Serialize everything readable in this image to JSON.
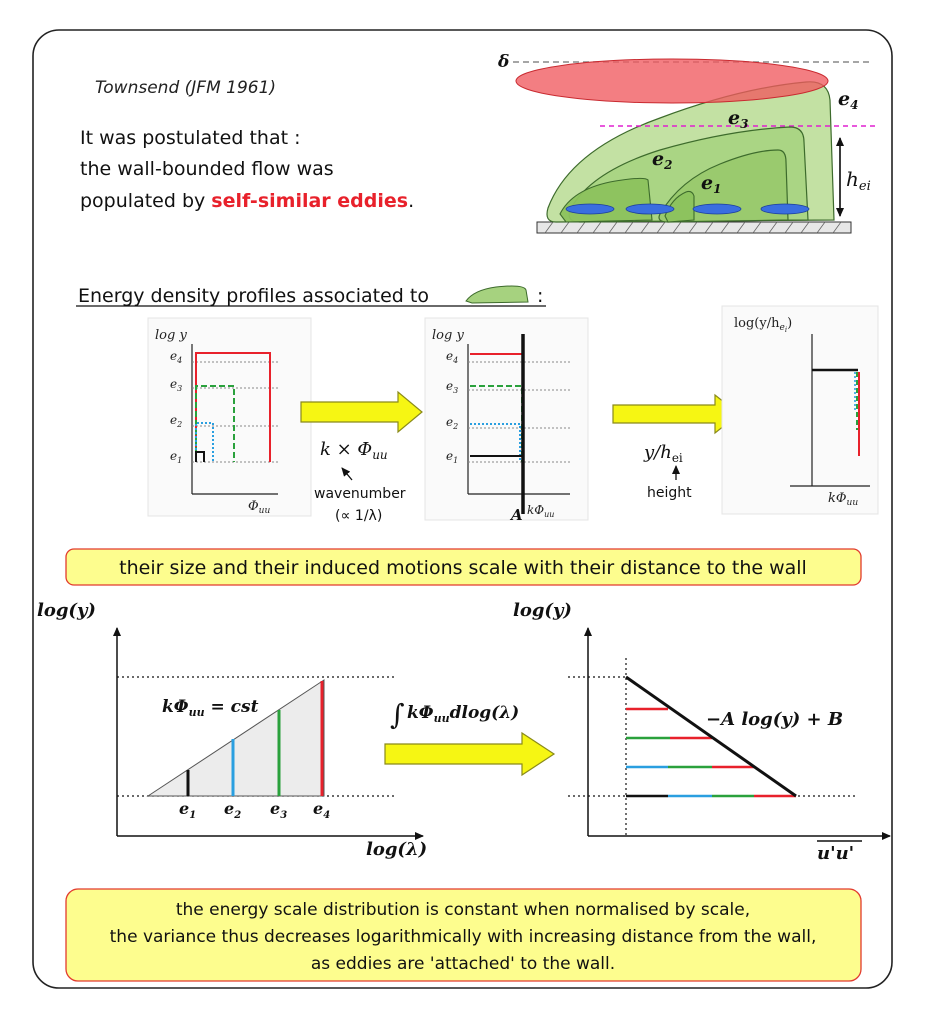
{
  "header": {
    "citation": "Townsend (JFM 1961)",
    "line1": "It was postulated that :",
    "line2": "the wall-bounded flow was",
    "line3_prefix": "populated by ",
    "line3_highlight": "self-similar eddies",
    "line3_suffix": "."
  },
  "eddy_sketch": {
    "delta": "δ",
    "e4": "e",
    "e4_sub": "4",
    "e3": "e",
    "e3_sub": "3",
    "e2": "e",
    "e2_sub": "2",
    "e1": "e",
    "e1_sub": "1",
    "h": "h",
    "h_sub": "ei"
  },
  "section": {
    "title": "Energy density profiles associated to",
    "colon": ":"
  },
  "panel1": {
    "ylabel": "log y",
    "xlabel": "Φ",
    "xlabel_sub": "uu",
    "levels": [
      "e4",
      "e3",
      "e2",
      "e1"
    ]
  },
  "arrow1": {
    "formula": "k × Φ",
    "formula_sub": "uu",
    "note1": "wavenumber",
    "note2": "(∝ 1/λ)"
  },
  "panel2": {
    "ylabel": "log y",
    "xlabel": "kΦ",
    "xlabel_sub": "uu",
    "marker": "A"
  },
  "arrow2": {
    "formula": "y/h",
    "formula_sub": "ei",
    "note": "height"
  },
  "panel3": {
    "ylabel": "log(y/h",
    "ylabel_sub": "e",
    "ylabel_subsub": "i",
    "ylabel_end": ")",
    "xlabel": "kΦ",
    "xlabel_sub": "uu"
  },
  "banner1": "their  size and their induced motions scale with their distance to the wall",
  "chart_left": {
    "ylabel": "log(y)",
    "xlabel": "log(λ)",
    "annotation": "kΦ",
    "annotation_sub": "uu",
    "annotation_end": " = cst",
    "ticks": [
      "e1",
      "e2",
      "e3",
      "e4"
    ]
  },
  "arrow3": {
    "formula": "kΦ",
    "formula_sub": "uu",
    "formula_end": "dlog(λ)",
    "integral": "∫"
  },
  "chart_right": {
    "ylabel": "log(y)",
    "xlabel": "u'u'",
    "law": "−A log(y) + B"
  },
  "banner2": {
    "line1": "the energy scale distribution is constant when normalised by scale,",
    "line2": "the variance thus decreases logarithmically with increasing distance from the wall,",
    "line3": "as eddies are 'attached' to the wall."
  },
  "colors": {
    "red": "#e8212b",
    "green": "#2aa13c",
    "blue": "#2a9fe0",
    "black": "#111111",
    "eddy_fill": "#a6d27f",
    "eddy_stroke": "#3d6b2c",
    "banner_fill": "#fdfd8e",
    "banner_stroke": "#e23b2e",
    "arrow_fill": "#f6f613",
    "arrow_stroke": "#8a8a1a"
  }
}
